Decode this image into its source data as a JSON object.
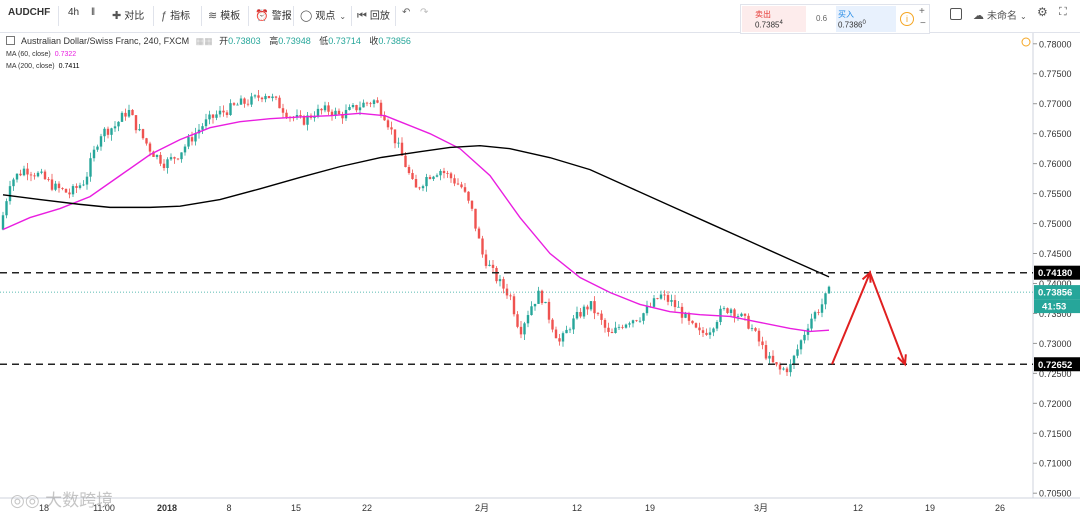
{
  "toolbar": {
    "symbol": "AUDCHF",
    "interval": "4h",
    "compare": "对比",
    "indicators": "指标",
    "templates": "模板",
    "alert": "警报",
    "ideas": "观点",
    "replay": "回放",
    "unnamed": "未命名"
  },
  "trade": {
    "sell_label": "卖出",
    "sell_price": "0.7385",
    "sell_sup": "4",
    "spread": "0.6",
    "buy_label": "买入",
    "buy_price": "0.7386",
    "buy_sup": "0"
  },
  "legend": {
    "title": "Australian Dollar/Swiss Franc, 240, FXCM",
    "open_label": "开",
    "open": "0.73803",
    "high_label": "高",
    "high": "0.73948",
    "low_label": "低",
    "low": "0.73714",
    "close_label": "收",
    "close": "0.73856",
    "ma60_label": "MA (60, close)",
    "ma60_value": "0.7322",
    "ma200_label": "MA (200, close)",
    "ma200_value": "0.7411"
  },
  "watermark": "大数跨境",
  "colors": {
    "up": "#26a69a",
    "down": "#ef5350",
    "ma60": "#e91ee0",
    "ma200": "#000000",
    "arrow": "#e02020",
    "last_price_bg": "#26a69a"
  },
  "chart_data": {
    "type": "candlestick",
    "y_ticks": [
      "0.78000",
      "0.77500",
      "0.77000",
      "0.76500",
      "0.76000",
      "0.75500",
      "0.75000",
      "0.74500",
      "0.74000",
      "0.73500",
      "0.73000",
      "0.72500",
      "0.72000",
      "0.71500",
      "0.71000",
      "0.70500"
    ],
    "ylim": [
      0.7042,
      0.7818
    ],
    "x_ticks": [
      "18",
      "11:00",
      "2018",
      "8",
      "15",
      "22",
      "2月",
      "12",
      "19",
      "3月",
      "12",
      "19",
      "26"
    ],
    "price_labels": {
      "resistance": "0.74180",
      "last": "0.73856",
      "countdown": "41:53",
      "support": "0.72652"
    },
    "levels": [
      {
        "name": "resistance",
        "value": 0.7418
      },
      {
        "name": "support",
        "value": 0.72652
      }
    ],
    "last_price": 0.73856,
    "price_path": [
      [
        0,
        0.749
      ],
      [
        10,
        0.757
      ],
      [
        25,
        0.7592
      ],
      [
        40,
        0.758
      ],
      [
        55,
        0.756
      ],
      [
        70,
        0.755
      ],
      [
        85,
        0.7572
      ],
      [
        100,
        0.765
      ],
      [
        115,
        0.7663
      ],
      [
        128,
        0.769
      ],
      [
        140,
        0.765
      ],
      [
        152,
        0.762
      ],
      [
        165,
        0.76
      ],
      [
        178,
        0.7615
      ],
      [
        190,
        0.764
      ],
      [
        203,
        0.7665
      ],
      [
        215,
        0.768
      ],
      [
        228,
        0.769
      ],
      [
        240,
        0.77
      ],
      [
        252,
        0.7705
      ],
      [
        265,
        0.7718
      ],
      [
        278,
        0.77
      ],
      [
        290,
        0.768
      ],
      [
        302,
        0.767
      ],
      [
        315,
        0.7685
      ],
      [
        328,
        0.769
      ],
      [
        340,
        0.768
      ],
      [
        352,
        0.769
      ],
      [
        364,
        0.77
      ],
      [
        375,
        0.7705
      ],
      [
        385,
        0.768
      ],
      [
        395,
        0.764
      ],
      [
        405,
        0.76
      ],
      [
        415,
        0.7555
      ],
      [
        428,
        0.758
      ],
      [
        440,
        0.759
      ],
      [
        452,
        0.7575
      ],
      [
        462,
        0.756
      ],
      [
        472,
        0.752
      ],
      [
        482,
        0.745
      ],
      [
        492,
        0.742
      ],
      [
        500,
        0.74
      ],
      [
        510,
        0.738
      ],
      [
        520,
        0.732
      ],
      [
        530,
        0.736
      ],
      [
        540,
        0.7385
      ],
      [
        550,
        0.734
      ],
      [
        560,
        0.73
      ],
      [
        570,
        0.733
      ],
      [
        580,
        0.735
      ],
      [
        590,
        0.7365
      ],
      [
        600,
        0.734
      ],
      [
        610,
        0.731
      ],
      [
        620,
        0.733
      ],
      [
        630,
        0.734
      ],
      [
        640,
        0.7345
      ],
      [
        650,
        0.736
      ],
      [
        660,
        0.738
      ],
      [
        670,
        0.737
      ],
      [
        680,
        0.7355
      ],
      [
        690,
        0.733
      ],
      [
        700,
        0.7315
      ],
      [
        710,
        0.7325
      ],
      [
        720,
        0.735
      ],
      [
        730,
        0.736
      ],
      [
        740,
        0.7345
      ],
      [
        750,
        0.733
      ],
      [
        760,
        0.73
      ],
      [
        770,
        0.727
      ],
      [
        780,
        0.7255
      ],
      [
        790,
        0.726
      ],
      [
        800,
        0.73
      ],
      [
        810,
        0.734
      ],
      [
        820,
        0.736
      ],
      [
        829,
        0.7386
      ]
    ],
    "series": [
      {
        "name": "MA (60, close)",
        "points": [
          [
            3,
            0.749
          ],
          [
            30,
            0.751
          ],
          [
            60,
            0.7525
          ],
          [
            90,
            0.7545
          ],
          [
            120,
            0.758
          ],
          [
            150,
            0.7615
          ],
          [
            180,
            0.764
          ],
          [
            210,
            0.766
          ],
          [
            240,
            0.767
          ],
          [
            270,
            0.7675
          ],
          [
            300,
            0.7678
          ],
          [
            330,
            0.768
          ],
          [
            360,
            0.7684
          ],
          [
            385,
            0.768
          ],
          [
            400,
            0.767
          ],
          [
            430,
            0.765
          ],
          [
            460,
            0.7625
          ],
          [
            490,
            0.758
          ],
          [
            520,
            0.751
          ],
          [
            550,
            0.745
          ],
          [
            580,
            0.741
          ],
          [
            610,
            0.7385
          ],
          [
            640,
            0.7365
          ],
          [
            670,
            0.7353
          ],
          [
            700,
            0.7348
          ],
          [
            730,
            0.7345
          ],
          [
            760,
            0.7335
          ],
          [
            790,
            0.7325
          ],
          [
            810,
            0.732
          ],
          [
            829,
            0.7322
          ]
        ]
      },
      {
        "name": "MA (200, close)",
        "points": [
          [
            3,
            0.7548
          ],
          [
            40,
            0.754
          ],
          [
            80,
            0.7532
          ],
          [
            110,
            0.7527
          ],
          [
            150,
            0.7527
          ],
          [
            180,
            0.7529
          ],
          [
            220,
            0.754
          ],
          [
            260,
            0.7558
          ],
          [
            300,
            0.7577
          ],
          [
            340,
            0.7595
          ],
          [
            380,
            0.761
          ],
          [
            420,
            0.762
          ],
          [
            450,
            0.7627
          ],
          [
            480,
            0.763
          ],
          [
            510,
            0.7625
          ],
          [
            550,
            0.761
          ],
          [
            590,
            0.759
          ],
          [
            630,
            0.756
          ],
          [
            670,
            0.753
          ],
          [
            710,
            0.75
          ],
          [
            750,
            0.747
          ],
          [
            790,
            0.744
          ],
          [
            829,
            0.7411
          ]
        ]
      }
    ],
    "projection": [
      [
        832,
        0.72652
      ],
      [
        870,
        0.7418
      ],
      [
        905,
        0.72652
      ]
    ]
  }
}
